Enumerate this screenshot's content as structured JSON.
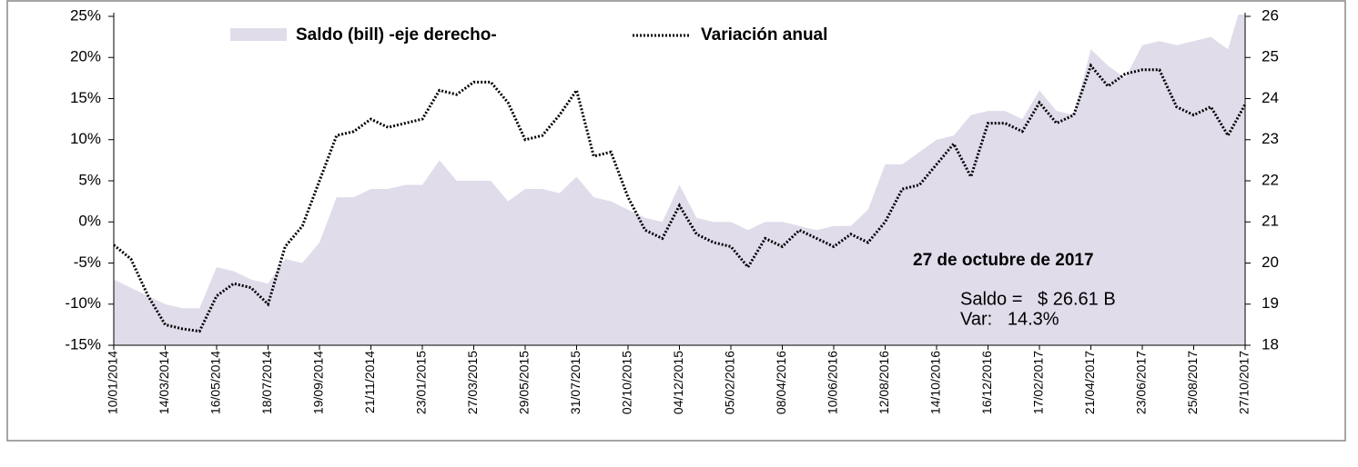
{
  "chart_data": {
    "type": "line",
    "categories": [
      "10/01/2014",
      null,
      null,
      "14/03/2014",
      null,
      null,
      "16/05/2014",
      null,
      null,
      "18/07/2014",
      null,
      null,
      "19/09/2014",
      null,
      null,
      "21/11/2014",
      null,
      null,
      "23/01/2015",
      null,
      null,
      "27/03/2015",
      null,
      null,
      "29/05/2015",
      null,
      null,
      "31/07/2015",
      null,
      null,
      "02/10/2015",
      null,
      null,
      "04/12/2015",
      null,
      null,
      "05/02/2016",
      null,
      null,
      "08/04/2016",
      null,
      null,
      "10/06/2016",
      null,
      null,
      "12/08/2016",
      null,
      null,
      "14/10/2016",
      null,
      null,
      "16/12/2016",
      null,
      null,
      "17/02/2017",
      null,
      null,
      "21/04/2017",
      null,
      null,
      "23/06/2017",
      null,
      null,
      "25/08/2017",
      null,
      null,
      "27/10/2017"
    ],
    "series": [
      {
        "name": "Saldo (bill) -eje derecho-",
        "type": "area",
        "axis": "y2",
        "color": "#e0dcea",
        "values": [
          19.6,
          19.4,
          19.2,
          19.0,
          18.9,
          18.9,
          19.9,
          19.8,
          19.6,
          19.5,
          20.1,
          20.0,
          20.5,
          21.6,
          21.6,
          21.8,
          21.8,
          21.9,
          21.9,
          22.5,
          22.0,
          22.0,
          22.0,
          21.5,
          21.8,
          21.8,
          21.7,
          22.1,
          21.6,
          21.5,
          21.3,
          21.1,
          21.0,
          21.9,
          21.1,
          21.0,
          21.0,
          20.8,
          21.0,
          21.0,
          20.9,
          20.8,
          20.9,
          20.9,
          21.3,
          22.4,
          22.4,
          22.7,
          23.0,
          23.1,
          23.6,
          23.7,
          23.7,
          23.5,
          24.2,
          23.7,
          23.6,
          25.2,
          24.8,
          24.5,
          25.3,
          25.4,
          25.3,
          25.4,
          25.5,
          25.2,
          26.61
        ]
      },
      {
        "name": "Variación anual",
        "type": "line",
        "color": "#000000",
        "values": [
          -2.8,
          -4.5,
          -9,
          -12.5,
          -13,
          -13.3,
          -9,
          -7.5,
          -8,
          -10,
          -3,
          -0.5,
          5,
          10.5,
          11,
          12.5,
          11.5,
          12,
          12.5,
          16,
          15.5,
          17,
          17,
          14.5,
          10,
          10.5,
          13,
          16,
          8,
          8.5,
          3,
          -1,
          -2,
          2,
          -1.5,
          -2.5,
          -3,
          -5.5,
          -2,
          -3,
          -1,
          -2,
          -3,
          -1.5,
          -2.5,
          0,
          4,
          4.5,
          7,
          9.5,
          5.5,
          12,
          12,
          11,
          14.5,
          12,
          13,
          19,
          16.5,
          18,
          18.5,
          18.5,
          14,
          13,
          14,
          10.5,
          14.3
        ]
      }
    ],
    "ylim": [
      -15,
      25
    ],
    "yticks": [
      {
        "value": -15,
        "label": "-15%"
      },
      {
        "value": -10,
        "label": "-10%"
      },
      {
        "value": -5,
        "label": "-5%"
      },
      {
        "value": 0,
        "label": "0%"
      },
      {
        "value": 5,
        "label": "5%"
      },
      {
        "value": 10,
        "label": "10%"
      },
      {
        "value": 15,
        "label": "15%"
      },
      {
        "value": 20,
        "label": "20%"
      },
      {
        "value": 25,
        "label": "25%"
      }
    ],
    "y2lim": [
      18,
      26
    ],
    "y2ticks": [
      18,
      19,
      20,
      21,
      22,
      23,
      24,
      25,
      26
    ],
    "legend": "top",
    "annotations": [
      "27 de octubre de 2017",
      "Saldo =   $ 26.61 B",
      "Var:   14.3%"
    ]
  }
}
